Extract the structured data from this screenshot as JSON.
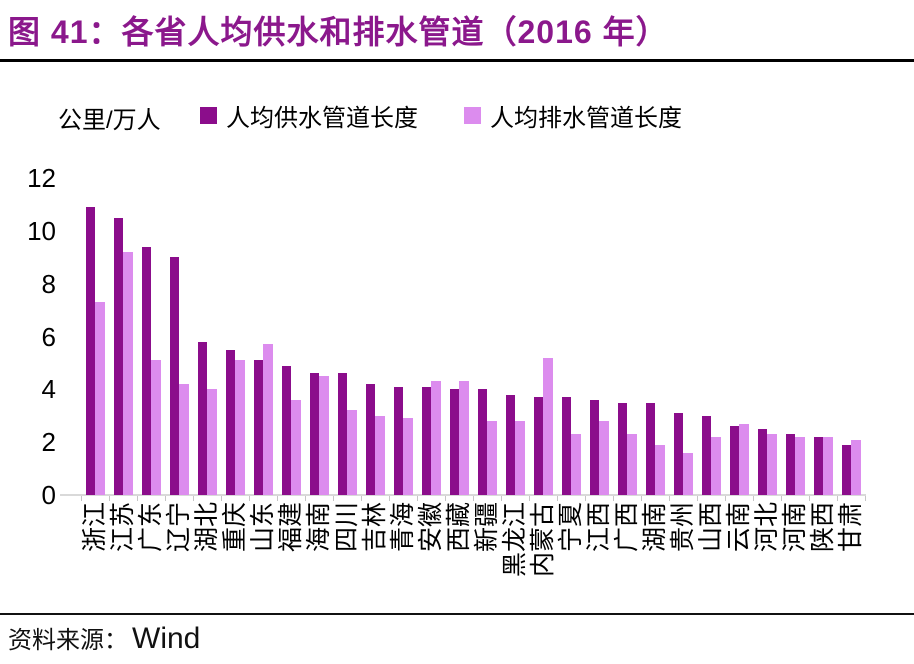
{
  "header": {
    "title": "图 41：各省人均供水和排水管道（2016 年）"
  },
  "chart_data": {
    "type": "bar",
    "title": "各省人均供水和排水管道（2016 年）",
    "unit_label": "公里/万人",
    "xlabel": "",
    "ylabel": "公里/万人",
    "ylim": [
      0,
      12
    ],
    "yticks": [
      0,
      2,
      4,
      6,
      8,
      10,
      12
    ],
    "grid": false,
    "legend_position": "top",
    "categories": [
      "浙江",
      "江苏",
      "广东",
      "辽宁",
      "湖北",
      "重庆",
      "山东",
      "福建",
      "海南",
      "四川",
      "吉林",
      "青海",
      "安徽",
      "西藏",
      "新疆",
      "黑龙江",
      "内蒙古",
      "宁夏",
      "江西",
      "广西",
      "湖南",
      "贵州",
      "山西",
      "云南",
      "河北",
      "河南",
      "陕西",
      "甘肃"
    ],
    "series": [
      {
        "name": "人均供水管道长度",
        "color": "#8B0D8B",
        "values": [
          10.9,
          10.5,
          9.4,
          9.0,
          5.8,
          5.5,
          5.1,
          4.9,
          4.6,
          4.6,
          4.2,
          4.1,
          4.1,
          4.0,
          4.0,
          3.8,
          3.7,
          3.7,
          3.6,
          3.5,
          3.5,
          3.1,
          3.0,
          2.6,
          2.5,
          2.3,
          2.2,
          1.9
        ]
      },
      {
        "name": "人均排水管道长度",
        "color": "#DC8CEE",
        "values": [
          7.3,
          9.2,
          5.1,
          4.2,
          4.0,
          5.1,
          5.7,
          3.6,
          4.5,
          3.2,
          3.0,
          2.9,
          4.3,
          4.3,
          2.8,
          2.8,
          5.2,
          2.3,
          2.8,
          2.3,
          1.9,
          1.6,
          2.2,
          2.7,
          2.3,
          2.2,
          2.2,
          2.1
        ]
      }
    ]
  },
  "footer": {
    "source_label": "资料来源：",
    "source_value": "Wind"
  },
  "colors": {
    "title": "#8B188C",
    "supply_bar": "#8B0D8B",
    "drainage_bar": "#DC8CEE",
    "axis_line": "#D9D9D9"
  }
}
